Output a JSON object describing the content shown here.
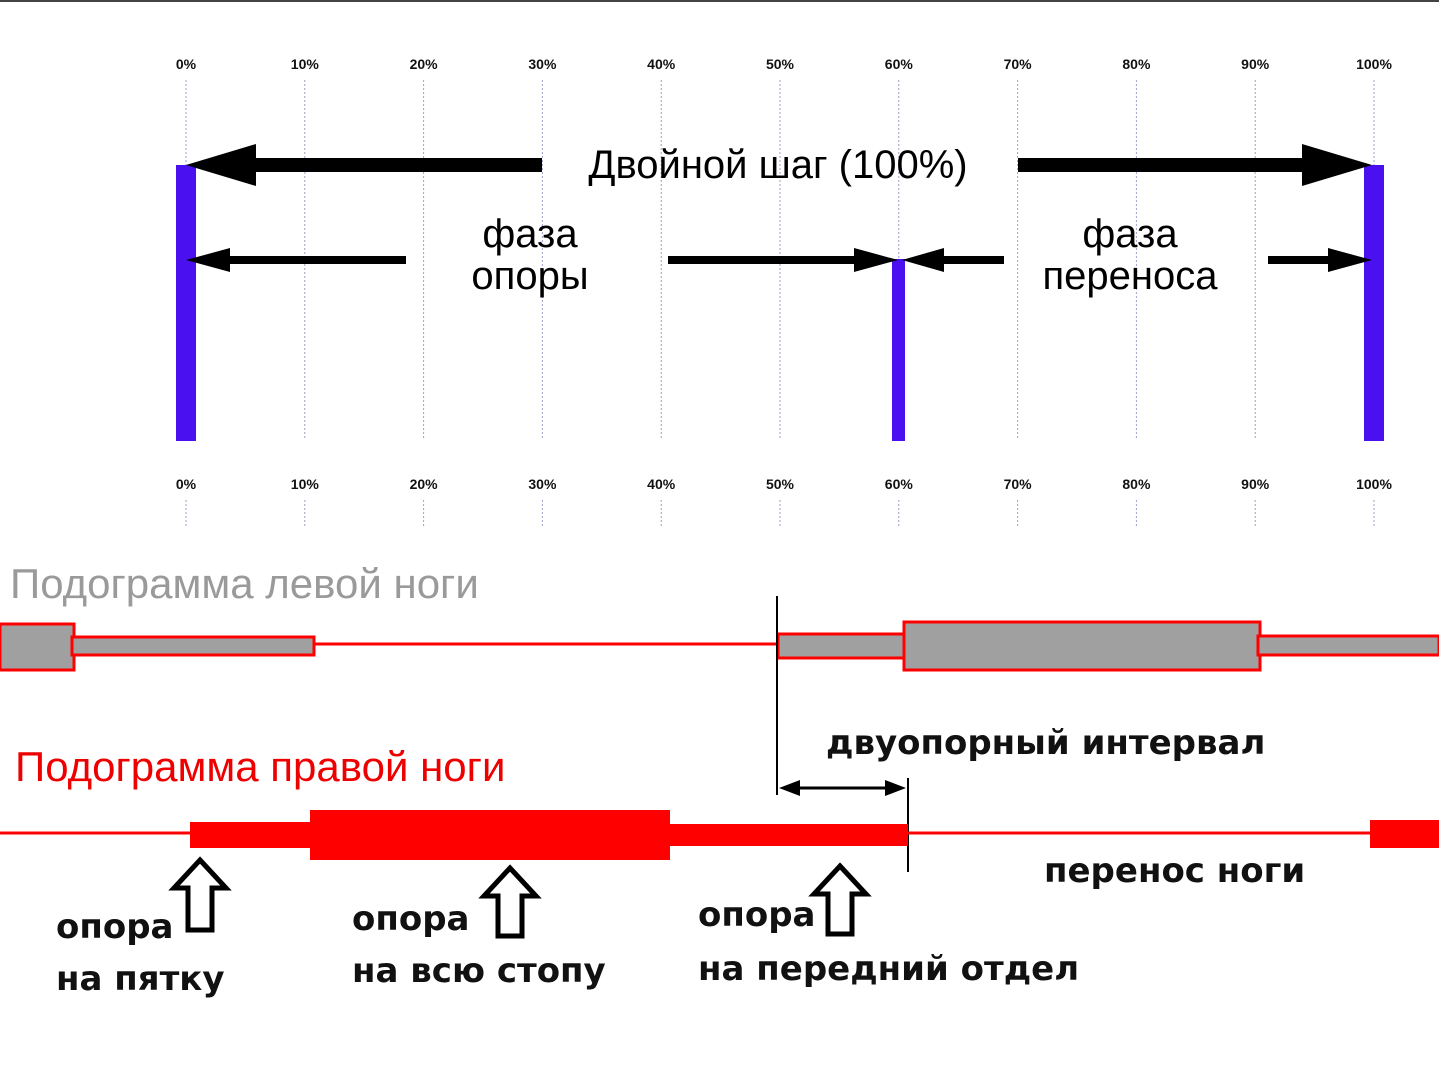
{
  "colors": {
    "marker": "#4a10f0",
    "left_foot_fill": "#a0a0a0",
    "right_foot": "#ff0000",
    "left_title": "#9a9a9a",
    "right_title": "#ee0000",
    "grid": "#9aa0c8"
  },
  "scale": {
    "ticks_top": [
      "0%",
      "10%",
      "20%",
      "30%",
      "40%",
      "50%",
      "60%",
      "70%",
      "80%",
      "90%",
      "100%"
    ],
    "ticks_bottom": [
      "0%",
      "10%",
      "20%",
      "30%",
      "40%",
      "50%",
      "60%",
      "70%",
      "80%",
      "90%",
      "100%"
    ]
  },
  "cycle": {
    "double_step": "Двойной шаг (100%)",
    "stance_line1": "фаза",
    "stance_line2": "опоры",
    "swing_line1": "фаза",
    "swing_line2": "переноса",
    "stance_end_pct": 60
  },
  "left_foot": {
    "title": "Подограмма левой ноги"
  },
  "right_foot": {
    "title": "Подограмма правой ноги"
  },
  "annotations": {
    "double_support": "двуопорный интервал",
    "swing": "перенос ноги",
    "heel_line1": "опора",
    "heel_line2": "на пятку",
    "full_line1": "опора",
    "full_line2": "на всю стопу",
    "fore_line1": "опора",
    "fore_line2": "на передний отдел"
  }
}
